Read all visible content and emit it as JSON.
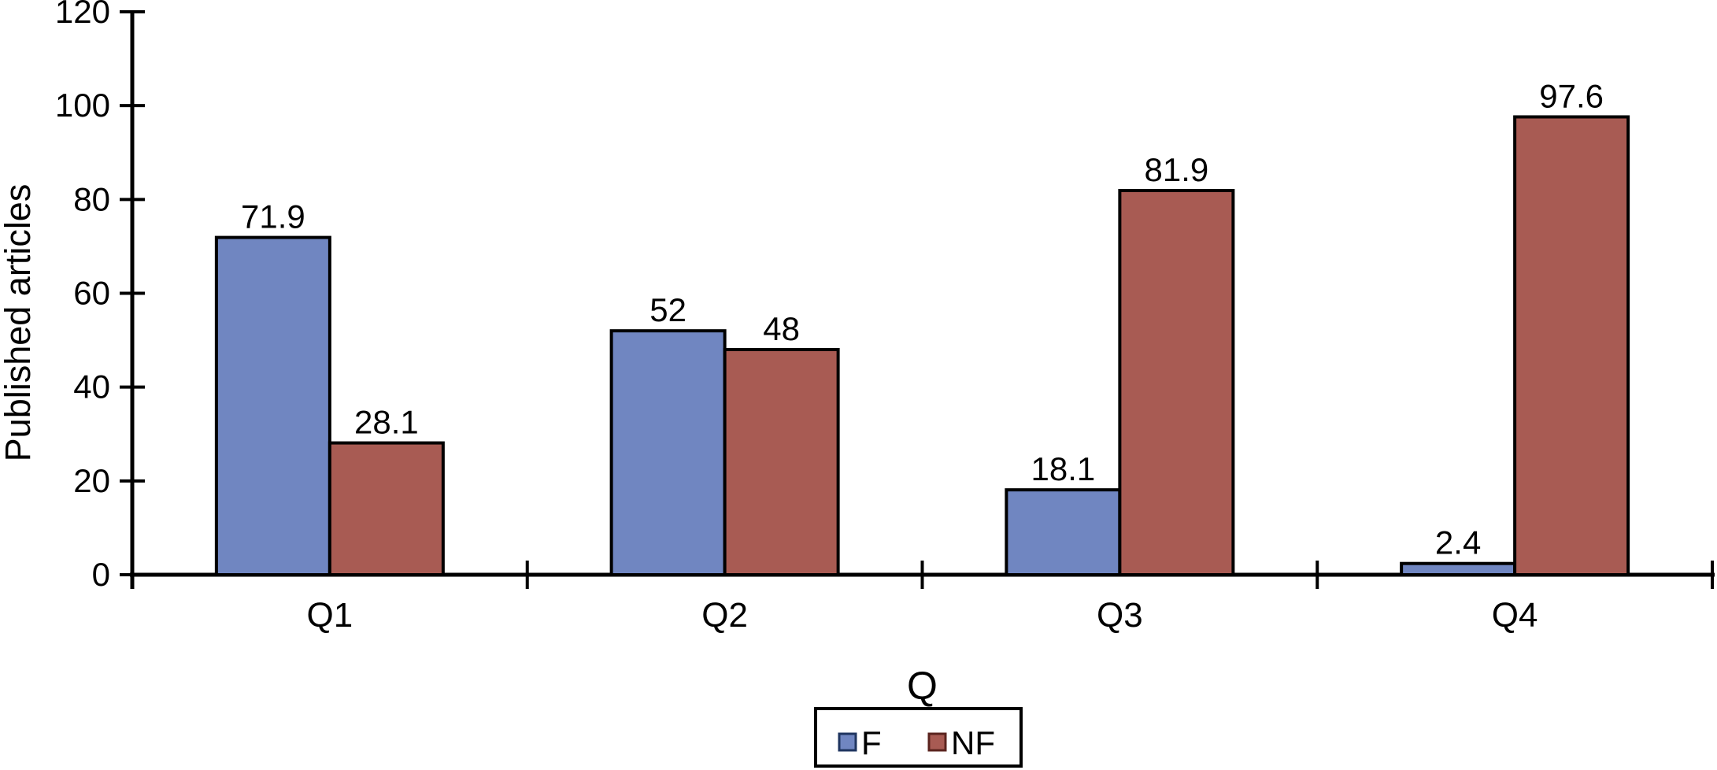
{
  "chart_data": {
    "type": "bar",
    "title": "",
    "categories": [
      "Q1",
      "Q2",
      "Q3",
      "Q4"
    ],
    "series": [
      {
        "name": "F",
        "color": "#7086C1",
        "bar_border": "#000000",
        "legend_marker_border": "#1F3560",
        "values": [
          71.9,
          52,
          18.1,
          2.4
        ]
      },
      {
        "name": "NF",
        "color": "#A85B53",
        "bar_border": "#000000",
        "legend_marker_border": "#5B241F",
        "values": [
          28.1,
          48,
          81.9,
          97.6
        ]
      }
    ],
    "value_labels": [
      "71.9",
      "52",
      "18.1",
      "2.4",
      "28.1",
      "48",
      "81.9",
      "97.6"
    ],
    "xlabel": "Q",
    "ylabel": "Published articles",
    "ylim": [
      0,
      120
    ],
    "yticks": [
      0,
      20,
      40,
      60,
      80,
      100,
      120
    ],
    "grid": false,
    "legend_position": "bottom",
    "axis_color": "#000000",
    "background_color": "#ffffff"
  }
}
